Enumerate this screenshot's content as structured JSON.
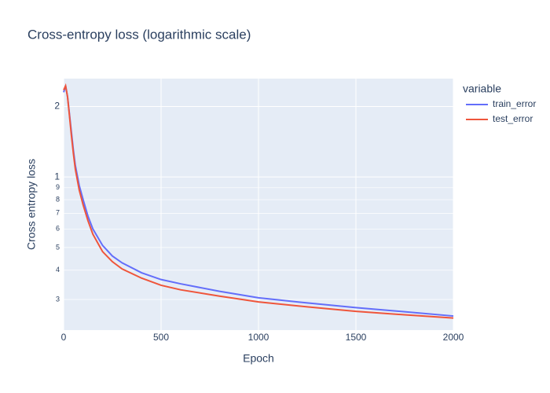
{
  "chart_data": {
    "type": "line",
    "title": "Cross-entropy loss (logarithmic scale)",
    "x_label": "Epoch",
    "y_label": "Cross entropy loss",
    "legend_title": "variable",
    "log_y": true,
    "grid": true,
    "legend": "right",
    "x": [
      0,
      10,
      20,
      30,
      40,
      50,
      60,
      80,
      100,
      125,
      150,
      200,
      250,
      300,
      400,
      500,
      600,
      800,
      1000,
      1250,
      1500,
      1750,
      2000
    ],
    "series": [
      {
        "name": "train_error",
        "color": "#636efa",
        "values": [
          2.3,
          2.45,
          2.2,
          1.85,
          1.55,
          1.3,
          1.12,
          0.92,
          0.8,
          0.68,
          0.6,
          0.51,
          0.46,
          0.43,
          0.39,
          0.365,
          0.35,
          0.325,
          0.305,
          0.29,
          0.277,
          0.266,
          0.255
        ]
      },
      {
        "name": "test_error",
        "color": "#ef553b",
        "values": [
          2.35,
          2.45,
          2.2,
          1.82,
          1.5,
          1.26,
          1.08,
          0.88,
          0.76,
          0.65,
          0.57,
          0.48,
          0.435,
          0.405,
          0.37,
          0.345,
          0.33,
          0.31,
          0.293,
          0.279,
          0.267,
          0.258,
          0.25
        ]
      }
    ],
    "xlim": [
      0,
      2000
    ],
    "xticks": [
      0,
      500,
      1000,
      1500,
      2000
    ],
    "ylim": [
      0.222,
      2.63
    ],
    "yticks": [
      {
        "value": 0.3,
        "label": "3"
      },
      {
        "value": 0.4,
        "label": "4"
      },
      {
        "value": 0.5,
        "label": "5"
      },
      {
        "value": 0.6,
        "label": "6"
      },
      {
        "value": 0.7,
        "label": "7"
      },
      {
        "value": 0.8,
        "label": "8"
      },
      {
        "value": 0.9,
        "label": "9"
      },
      1,
      2
    ]
  }
}
